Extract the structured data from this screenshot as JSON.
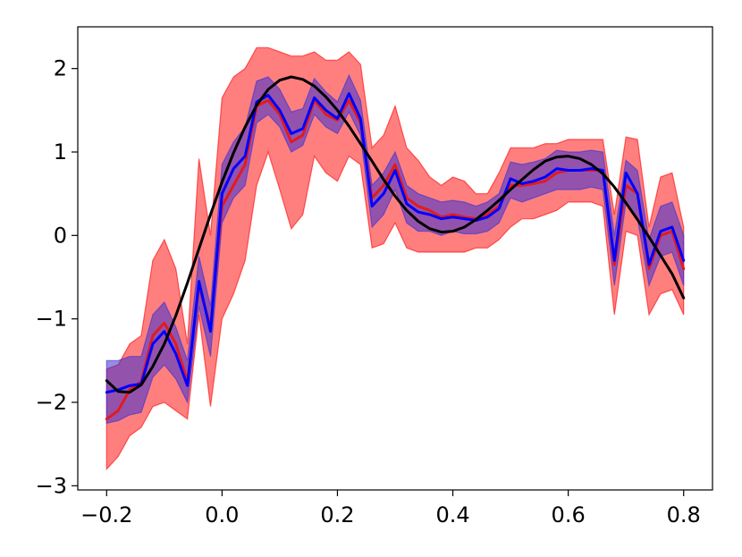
{
  "chart_data": {
    "type": "line",
    "title": "",
    "xlabel": "",
    "ylabel": "",
    "xlim": [
      -0.25,
      0.85
    ],
    "ylim": [
      -3.05,
      2.5
    ],
    "grid": false,
    "legend": "none",
    "x_ticks": [
      -0.2,
      0.0,
      0.2,
      0.4,
      0.6,
      0.8
    ],
    "x_tick_labels": [
      "−0.2",
      "0.0",
      "0.2",
      "0.4",
      "0.6",
      "0.8"
    ],
    "y_ticks": [
      -3,
      -2,
      -1,
      0,
      1,
      2
    ],
    "y_tick_labels": [
      "−3",
      "−2",
      "−1",
      "0",
      "1",
      "2"
    ],
    "x": [
      -0.2,
      -0.18,
      -0.16,
      -0.14,
      -0.12,
      -0.1,
      -0.08,
      -0.06,
      -0.04,
      -0.02,
      0.0,
      0.02,
      0.04,
      0.06,
      0.08,
      0.1,
      0.12,
      0.14,
      0.16,
      0.18,
      0.2,
      0.22,
      0.24,
      0.26,
      0.28,
      0.3,
      0.32,
      0.34,
      0.36,
      0.38,
      0.4,
      0.42,
      0.44,
      0.46,
      0.48,
      0.5,
      0.52,
      0.54,
      0.56,
      0.58,
      0.6,
      0.62,
      0.64,
      0.66,
      0.68,
      0.7,
      0.72,
      0.74,
      0.76,
      0.78,
      0.8
    ],
    "series": [
      {
        "color": "#e31a1c",
        "band_color": "#ff0000",
        "values": [
          -2.2,
          -2.1,
          -1.85,
          -1.75,
          -1.2,
          -1.05,
          -1.3,
          -1.75,
          -0.6,
          -1.1,
          0.35,
          0.6,
          0.85,
          1.55,
          1.62,
          1.45,
          1.12,
          1.2,
          1.62,
          1.45,
          1.38,
          1.62,
          1.35,
          0.45,
          0.6,
          0.85,
          0.45,
          0.35,
          0.3,
          0.22,
          0.25,
          0.22,
          0.2,
          0.25,
          0.35,
          0.6,
          0.6,
          0.62,
          0.65,
          0.75,
          0.78,
          0.78,
          0.78,
          0.78,
          -0.35,
          0.6,
          0.5,
          -0.4,
          0.0,
          0.05,
          -0.4
        ],
        "lower": [
          -2.8,
          -2.65,
          -2.4,
          -2.3,
          -2.05,
          -2.0,
          -2.1,
          -2.2,
          -0.95,
          -2.05,
          -1.0,
          -0.7,
          -0.3,
          0.6,
          1.0,
          0.55,
          0.08,
          0.25,
          0.95,
          0.75,
          0.65,
          0.95,
          0.85,
          -0.15,
          -0.1,
          0.15,
          -0.15,
          -0.2,
          -0.2,
          -0.2,
          -0.2,
          -0.2,
          -0.15,
          -0.15,
          -0.05,
          0.1,
          0.2,
          0.2,
          0.25,
          0.3,
          0.4,
          0.4,
          0.4,
          0.35,
          -0.95,
          0.05,
          0.0,
          -0.95,
          -0.7,
          -0.65,
          -0.95
        ],
        "upper": [
          -1.6,
          -1.55,
          -1.3,
          -1.2,
          -0.3,
          -0.05,
          -0.4,
          -1.3,
          0.92,
          0.0,
          1.65,
          1.9,
          2.0,
          2.25,
          2.25,
          2.2,
          2.15,
          2.15,
          2.2,
          2.1,
          2.1,
          2.2,
          2.05,
          1.05,
          1.2,
          1.55,
          1.05,
          0.9,
          0.7,
          0.6,
          0.7,
          0.65,
          0.5,
          0.5,
          0.75,
          1.05,
          1.05,
          1.05,
          1.1,
          1.1,
          1.15,
          1.15,
          1.15,
          1.15,
          0.25,
          1.18,
          1.15,
          0.1,
          0.7,
          0.75,
          0.1
        ]
      },
      {
        "color": "#0000ff",
        "band_color": "#3b2fd4",
        "values": [
          -1.88,
          -1.85,
          -1.8,
          -1.78,
          -1.3,
          -1.15,
          -1.42,
          -1.8,
          -0.55,
          -1.15,
          0.5,
          0.8,
          0.95,
          1.6,
          1.68,
          1.5,
          1.22,
          1.28,
          1.65,
          1.5,
          1.4,
          1.7,
          1.4,
          0.35,
          0.5,
          0.78,
          0.38,
          0.28,
          0.25,
          0.2,
          0.22,
          0.2,
          0.18,
          0.22,
          0.32,
          0.68,
          0.62,
          0.65,
          0.7,
          0.8,
          0.78,
          0.78,
          0.8,
          0.78,
          -0.3,
          0.75,
          0.5,
          -0.35,
          0.05,
          0.1,
          -0.3
        ],
        "lower": [
          -2.25,
          -2.22,
          -2.15,
          -2.12,
          -1.7,
          -1.55,
          -1.72,
          -2.0,
          -0.85,
          -1.45,
          0.15,
          0.45,
          0.6,
          1.35,
          1.45,
          1.3,
          1.0,
          1.08,
          1.45,
          1.3,
          1.22,
          1.48,
          1.2,
          0.1,
          0.25,
          0.55,
          0.15,
          0.05,
          0.05,
          0.0,
          0.05,
          0.02,
          0.02,
          0.05,
          0.15,
          0.45,
          0.4,
          0.45,
          0.5,
          0.55,
          0.55,
          0.55,
          0.58,
          0.55,
          -0.6,
          0.4,
          0.2,
          -0.6,
          -0.25,
          -0.2,
          -0.6
        ],
        "upper": [
          -1.5,
          -1.5,
          -1.45,
          -1.45,
          -0.95,
          -0.8,
          -1.1,
          -1.5,
          -0.25,
          -0.85,
          0.85,
          1.12,
          1.3,
          1.85,
          1.9,
          1.75,
          1.48,
          1.52,
          1.88,
          1.72,
          1.6,
          1.92,
          1.62,
          0.6,
          0.75,
          1.0,
          0.6,
          0.5,
          0.45,
          0.4,
          0.42,
          0.4,
          0.35,
          0.4,
          0.5,
          0.88,
          0.85,
          0.88,
          0.92,
          1.02,
          1.0,
          1.0,
          1.02,
          1.0,
          0.0,
          0.9,
          0.78,
          -0.05,
          0.35,
          0.4,
          0.0
        ]
      },
      {
        "color": "#000000",
        "curve": "true-function",
        "x": [
          -0.2,
          -0.18,
          -0.16,
          -0.14,
          -0.12,
          -0.1,
          -0.08,
          -0.06,
          -0.04,
          -0.02,
          0.0,
          0.02,
          0.04,
          0.06,
          0.08,
          0.1,
          0.12,
          0.14,
          0.16,
          0.18,
          0.2,
          0.22,
          0.24,
          0.26,
          0.28,
          0.3,
          0.32,
          0.34,
          0.36,
          0.38,
          0.4,
          0.42,
          0.44,
          0.46,
          0.48,
          0.5,
          0.52,
          0.54,
          0.56,
          0.58,
          0.6,
          0.62,
          0.64,
          0.66,
          0.68,
          0.7,
          0.72,
          0.74,
          0.76,
          0.78,
          0.8
        ],
        "values": [
          -1.74,
          -1.87,
          -1.88,
          -1.79,
          -1.57,
          -1.3,
          -0.96,
          -0.57,
          -0.16,
          0.25,
          0.64,
          0.99,
          1.3,
          1.56,
          1.75,
          1.86,
          1.9,
          1.87,
          1.79,
          1.66,
          1.5,
          1.31,
          1.1,
          0.89,
          0.67,
          0.47,
          0.3,
          0.17,
          0.08,
          0.04,
          0.05,
          0.1,
          0.19,
          0.3,
          0.42,
          0.55,
          0.67,
          0.79,
          0.89,
          0.94,
          0.95,
          0.92,
          0.85,
          0.74,
          0.58,
          0.39,
          0.19,
          -0.02,
          -0.24,
          -0.46,
          -0.75
        ]
      }
    ]
  }
}
